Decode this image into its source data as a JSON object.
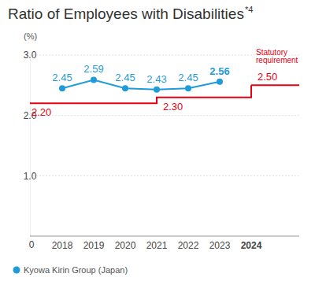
{
  "chart_data": {
    "type": "line",
    "title": "Ratio of Employees with Disabilities",
    "title_note": "*4",
    "y_label": "(%)",
    "categories": [
      "2018",
      "2019",
      "2020",
      "2021",
      "2022",
      "2023",
      "2024"
    ],
    "series": [
      {
        "name": "Kyowa Kirin Group (Japan)",
        "color": "#1f9bd7",
        "marker": "circle",
        "type": "line",
        "values": [
          2.45,
          2.59,
          2.45,
          2.43,
          2.45,
          2.56,
          null
        ]
      },
      {
        "name": "Statutory requirement",
        "color": "#e60012",
        "line_style": "step",
        "type": "line",
        "values": [
          2.2,
          2.2,
          2.2,
          2.3,
          2.3,
          2.3,
          2.5
        ],
        "value_labels": [
          "2.20",
          null,
          null,
          "2.30",
          null,
          null,
          "2.50"
        ]
      }
    ],
    "ylim": [
      0,
      3
    ],
    "yticks": [
      0,
      {
        "value": 1,
        "label": "1.0"
      },
      {
        "value": 2,
        "label": "2.0"
      },
      {
        "value": 3,
        "label": "3.0"
      }
    ],
    "grid": true,
    "data_labels": true,
    "legend": "bottom-left"
  }
}
